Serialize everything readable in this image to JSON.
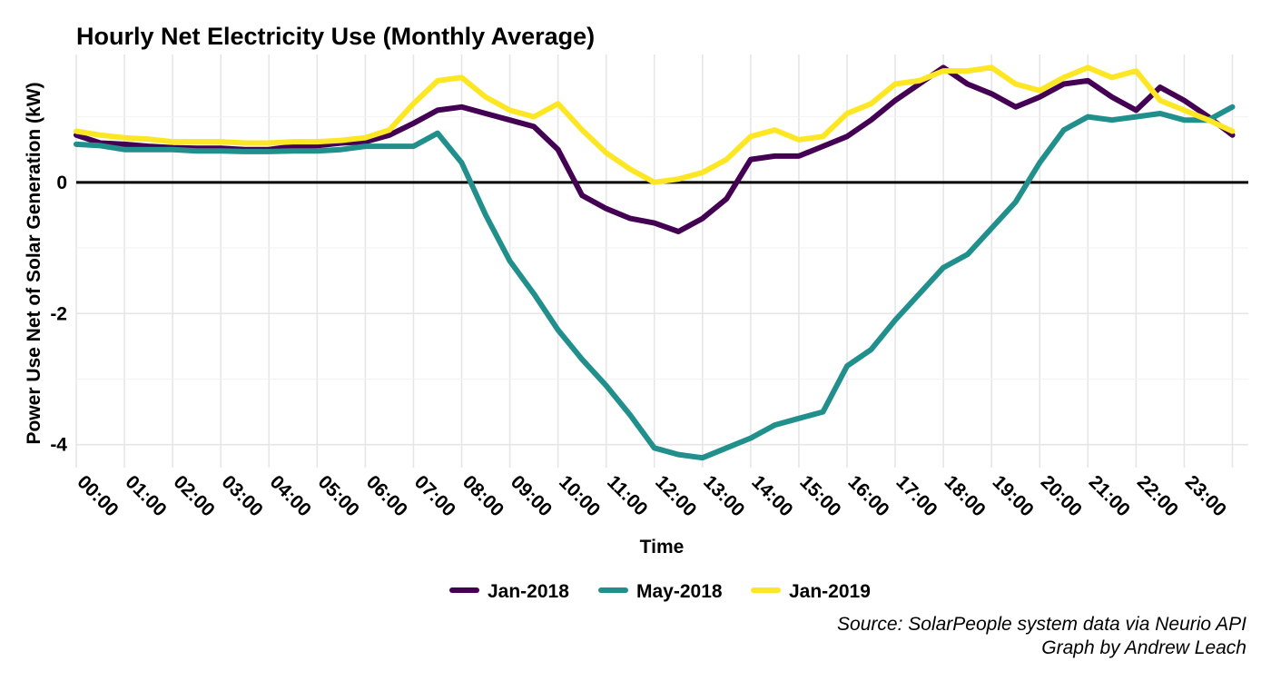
{
  "chart_data": {
    "type": "line",
    "title": "Hourly Net Electricity Use (Monthly Average)",
    "xlabel": "Time",
    "ylabel": "Power Use Net of Solar Generation (kW)",
    "x_tick_labels": [
      "00:00",
      "01:00",
      "02:00",
      "03:00",
      "04:00",
      "05:00",
      "06:00",
      "07:00",
      "08:00",
      "09:00",
      "10:00",
      "11:00",
      "12:00",
      "13:00",
      "14:00",
      "15:00",
      "16:00",
      "17:00",
      "18:00",
      "19:00",
      "20:00",
      "21:00",
      "22:00",
      "23:00"
    ],
    "y_ticks": [
      0,
      -2,
      -4
    ],
    "xlim": [
      0,
      24.33
    ],
    "ylim": [
      -4.35,
      1.95
    ],
    "grid": true,
    "reference_line_y": 0,
    "legend_position": "bottom",
    "x_hours": [
      0,
      0.5,
      1,
      1.5,
      2,
      2.5,
      3,
      3.5,
      4,
      4.5,
      5,
      5.5,
      6,
      6.5,
      7,
      7.5,
      8,
      8.5,
      9,
      9.5,
      10,
      10.5,
      11,
      11.5,
      12,
      12.5,
      13,
      13.5,
      14,
      14.5,
      15,
      15.5,
      16,
      16.5,
      17,
      17.5,
      18,
      18.5,
      19,
      19.5,
      20,
      20.5,
      21,
      21.5,
      22,
      22.5,
      23,
      23.5,
      24
    ],
    "series": [
      {
        "name": "Jan-2018",
        "color": "#440154",
        "values": [
          0.72,
          0.6,
          0.58,
          0.55,
          0.53,
          0.52,
          0.52,
          0.5,
          0.5,
          0.55,
          0.56,
          0.6,
          0.62,
          0.72,
          0.9,
          1.1,
          1.15,
          1.05,
          0.95,
          0.85,
          0.5,
          -0.2,
          -0.4,
          -0.55,
          -0.62,
          -0.75,
          -0.55,
          -0.25,
          0.35,
          0.4,
          0.4,
          0.55,
          0.7,
          0.95,
          1.25,
          1.5,
          1.75,
          1.5,
          1.35,
          1.15,
          1.3,
          1.5,
          1.55,
          1.3,
          1.1,
          1.45,
          1.25,
          1.0,
          0.72
        ]
      },
      {
        "name": "May-2018",
        "color": "#21908C",
        "values": [
          0.58,
          0.56,
          0.5,
          0.5,
          0.5,
          0.48,
          0.48,
          0.47,
          0.47,
          0.48,
          0.48,
          0.5,
          0.55,
          0.55,
          0.55,
          0.75,
          0.3,
          -0.5,
          -1.2,
          -1.7,
          -2.25,
          -2.7,
          -3.1,
          -3.55,
          -4.05,
          -4.15,
          -4.2,
          -4.05,
          -3.9,
          -3.7,
          -3.6,
          -3.5,
          -2.8,
          -2.55,
          -2.1,
          -1.7,
          -1.3,
          -1.1,
          -0.7,
          -0.3,
          0.3,
          0.8,
          1.0,
          0.95,
          1.0,
          1.05,
          0.95,
          0.95,
          1.15
        ]
      },
      {
        "name": "Jan-2019",
        "color": "#FDE725",
        "values": [
          0.78,
          0.72,
          0.68,
          0.66,
          0.62,
          0.62,
          0.62,
          0.6,
          0.6,
          0.62,
          0.62,
          0.64,
          0.68,
          0.8,
          1.2,
          1.55,
          1.6,
          1.3,
          1.1,
          1.0,
          1.2,
          0.8,
          0.45,
          0.2,
          0.0,
          0.05,
          0.15,
          0.35,
          0.7,
          0.8,
          0.65,
          0.7,
          1.05,
          1.2,
          1.5,
          1.55,
          1.7,
          1.7,
          1.75,
          1.5,
          1.4,
          1.6,
          1.75,
          1.6,
          1.7,
          1.25,
          1.1,
          0.95,
          0.78
        ]
      }
    ],
    "caption_lines": [
      "Source: SolarPeople system data via Neurio API",
      "Graph by Andrew Leach"
    ]
  }
}
